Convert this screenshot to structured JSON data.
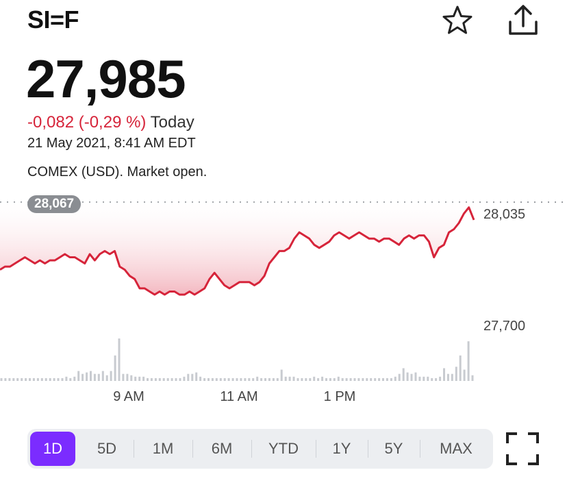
{
  "header": {
    "ticker": "SI=F",
    "star_icon": "star-icon",
    "share_icon": "share-icon"
  },
  "quote": {
    "price": "27,985",
    "change": "-0,082 (-0,29 %)",
    "period": "Today",
    "timestamp": "21 May 2021, 8:41 AM EDT",
    "market": "COMEX (USD). Market open.",
    "previous_close": "28,067"
  },
  "colors": {
    "line": "#d6243a",
    "fill": "#f7c9cf",
    "volume": "#c8cbd0",
    "accent": "#7b2cff"
  },
  "chart_data": {
    "type": "line",
    "y_ticks": [
      "28,035",
      "27,700"
    ],
    "x_ticks": [
      "9 AM",
      "11 AM",
      "1 PM"
    ],
    "ylim": [
      27.66,
      28.1
    ],
    "previous_close": 28.067,
    "grid": false,
    "series": [
      {
        "values": [
          27.85,
          27.86,
          27.86,
          27.87,
          27.88,
          27.89,
          27.88,
          27.87,
          27.88,
          27.87,
          27.88,
          27.88,
          27.89,
          27.9,
          27.89,
          27.89,
          27.88,
          27.87,
          27.9,
          27.88,
          27.9,
          27.91,
          27.9,
          27.91,
          27.86,
          27.85,
          27.83,
          27.82,
          27.79,
          27.79,
          27.78,
          27.77,
          27.78,
          27.77,
          27.78,
          27.78,
          27.77,
          27.77,
          27.78,
          27.77,
          27.78,
          27.79,
          27.82,
          27.84,
          27.82,
          27.8,
          27.79,
          27.8,
          27.81,
          27.81,
          27.81,
          27.8,
          27.81,
          27.83,
          27.87,
          27.89,
          27.91,
          27.91,
          27.92,
          27.95,
          27.97,
          27.96,
          27.95,
          27.93,
          27.92,
          27.93,
          27.94,
          27.96,
          27.97,
          27.96,
          27.95,
          27.96,
          27.97,
          27.96,
          27.95,
          27.95,
          27.94,
          27.95,
          27.95,
          27.94,
          27.93,
          27.95,
          27.96,
          27.95,
          27.96,
          27.96,
          27.94,
          27.89,
          27.92,
          27.93,
          27.97,
          27.98,
          28.0,
          28.03,
          28.05,
          28.01
        ]
      }
    ],
    "volume": [
      2,
      2,
      2,
      2,
      2,
      2,
      2,
      2,
      2,
      2,
      2,
      2,
      2,
      2,
      2,
      2,
      3,
      2,
      3,
      7,
      5,
      6,
      7,
      5,
      5,
      7,
      4,
      7,
      18,
      30,
      5,
      5,
      4,
      3,
      3,
      3,
      2,
      2,
      2,
      2,
      2,
      2,
      2,
      2,
      2,
      3,
      5,
      5,
      6,
      3,
      2,
      2,
      2,
      2,
      2,
      2,
      2,
      2,
      2,
      2,
      2,
      2,
      2,
      3,
      2,
      2,
      2,
      2,
      2,
      8,
      3,
      3,
      3,
      2,
      2,
      2,
      2,
      3,
      2,
      3,
      2,
      2,
      2,
      3,
      2,
      2,
      2,
      2,
      2,
      2,
      2,
      2,
      2,
      2,
      2,
      2,
      2,
      3,
      5,
      9,
      6,
      5,
      6,
      3,
      3,
      3,
      2,
      2,
      3,
      9,
      5,
      5,
      10,
      18,
      8,
      28,
      4
    ]
  },
  "ranges": [
    {
      "label": "1D",
      "active": true
    },
    {
      "label": "5D"
    },
    {
      "label": "1M"
    },
    {
      "label": "6M"
    },
    {
      "label": "YTD"
    },
    {
      "label": "1Y"
    },
    {
      "label": "5Y"
    },
    {
      "label": "MAX"
    }
  ],
  "fullscreen_icon": "fullscreen-icon"
}
